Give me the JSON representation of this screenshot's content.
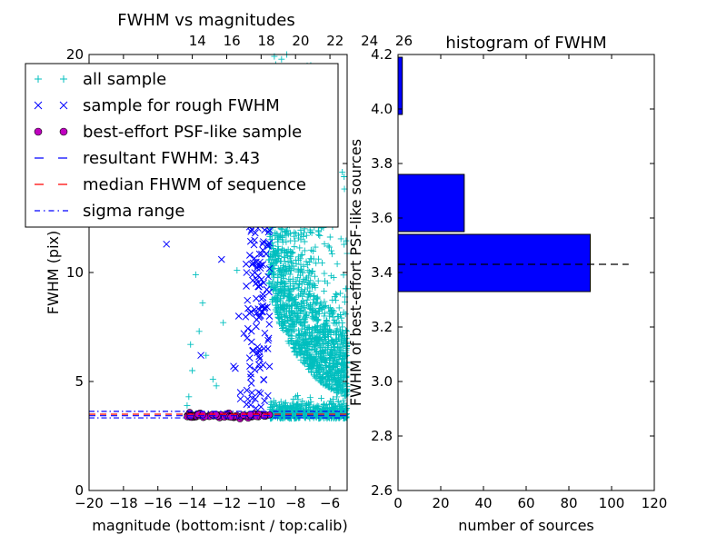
{
  "chart_data": [
    {
      "type": "scatter",
      "title": "FWHM vs magnitudes",
      "xlabel": "magnitude (bottom:isnt / top:calib)",
      "ylabel": "FWHM (pix)",
      "xlim": [
        -20,
        -5
      ],
      "ylim": [
        0,
        20
      ],
      "x_ticks": [
        -20,
        -18,
        -16,
        -14,
        -12,
        -10,
        -8,
        -6
      ],
      "x_tick_labels": [
        "−20",
        "−18",
        "−16",
        "−14",
        "−12",
        "−10",
        "−8",
        "−6"
      ],
      "y_ticks": [
        0,
        5,
        10,
        15,
        20
      ],
      "y_tick_labels": [
        "0",
        "5",
        "10",
        "15",
        "20"
      ],
      "top_axis": {
        "label_offset": 27.7,
        "ticks": [
          14,
          16,
          18,
          20,
          22,
          24,
          26
        ],
        "tick_labels": [
          "14",
          "16",
          "18",
          "20",
          "22",
          "24",
          "26"
        ]
      },
      "series": [
        {
          "name": "all sample",
          "marker": "+",
          "color": "#00bfbf"
        },
        {
          "name": "sample for rough FWHM",
          "marker": "x",
          "color": "#0000ff"
        },
        {
          "name": "best-effort PSF-like sample",
          "marker": "o",
          "color": "#bf00bf"
        }
      ],
      "lines": [
        {
          "name": "resultant FWHM: 3.43",
          "y": 3.43,
          "style": "dashed",
          "color": "#0000ff"
        },
        {
          "name": "median FHWM of sequence",
          "y": 3.5,
          "style": "dashed",
          "color": "#ff0000"
        },
        {
          "name": "sigma range",
          "y": [
            3.33,
            3.63
          ],
          "style": "dashdot",
          "color": "#0000ff"
        }
      ],
      "legend": {
        "position": "upper-left",
        "entries": [
          "all sample",
          "sample for rough FWHM",
          "best-effort PSF-like sample",
          "resultant FWHM: 3.43",
          "median FHWM of sequence",
          "sigma range"
        ]
      }
    },
    {
      "type": "bar",
      "orientation": "horizontal",
      "title": "histogram of FWHM",
      "xlabel": "number of sources",
      "ylabel": "FWHM of best-effort PSF-like sources",
      "xlim": [
        0,
        120
      ],
      "ylim": [
        2.6,
        4.2
      ],
      "x_ticks": [
        0,
        20,
        40,
        60,
        80,
        100,
        120
      ],
      "x_tick_labels": [
        "0",
        "20",
        "40",
        "60",
        "80",
        "100",
        "120"
      ],
      "y_ticks": [
        2.6,
        2.8,
        3.0,
        3.2,
        3.4,
        3.6,
        3.8,
        4.0,
        4.2
      ],
      "y_tick_labels": [
        "2.6",
        "2.8",
        "3.0",
        "3.2",
        "3.4",
        "3.6",
        "3.8",
        "4.0",
        "4.2"
      ],
      "bars": [
        {
          "y0": 3.33,
          "y1": 3.54,
          "count": 90
        },
        {
          "y0": 3.54,
          "y1": 3.55,
          "count": 0
        },
        {
          "y0": 3.55,
          "y1": 3.76,
          "count": 31
        },
        {
          "y0": 3.98,
          "y1": 4.19,
          "count": 2
        }
      ],
      "bar_color": "#0000ff",
      "reference_line": {
        "y": 3.43,
        "x_range": [
          0,
          108
        ],
        "style": "dashed",
        "color": "#000000"
      }
    }
  ]
}
